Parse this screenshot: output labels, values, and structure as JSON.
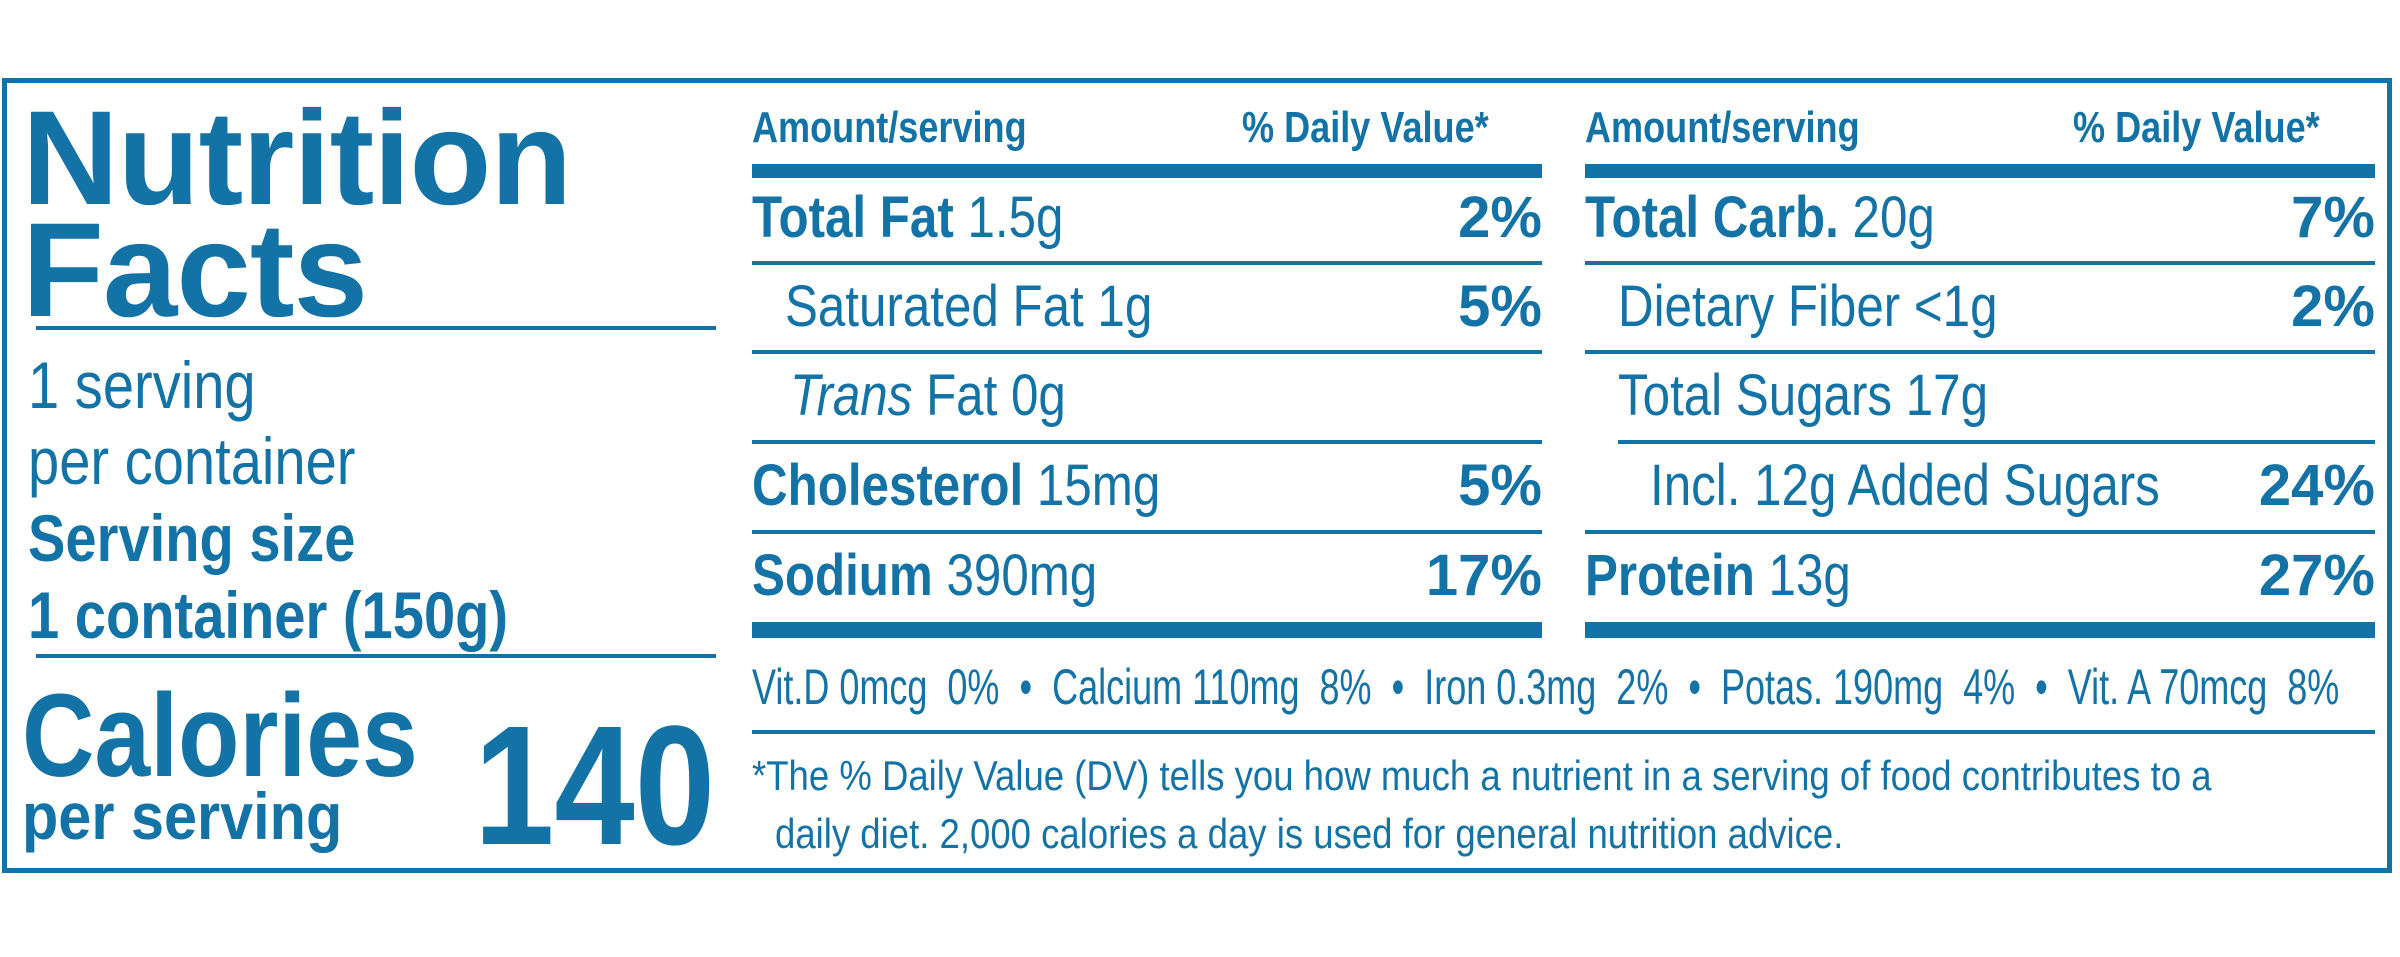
{
  "label": {
    "title_line1": "Nutrition",
    "title_line2": "Facts",
    "servings_line1": "1 serving",
    "servings_line2": "per container",
    "serving_size_label": "Serving size",
    "serving_size_value": "1 container (150g)",
    "calories_label": "Calories",
    "calories_sub": "per serving",
    "calories_value": "140"
  },
  "left_table": {
    "header_amount": "Amount/serving",
    "header_dv": "% Daily Value*",
    "rows": [
      {
        "name": "Total Fat",
        "amount": "1.5g",
        "dv": "2%"
      },
      {
        "name": "Saturated Fat 1g",
        "amount": "",
        "dv": "5%"
      },
      {
        "name_italic": "Trans",
        "name": "Fat 0g",
        "dv": ""
      },
      {
        "name": "Cholesterol",
        "amount": "15mg",
        "dv": "5%"
      },
      {
        "name": "Sodium",
        "amount": "390mg",
        "dv": "17%"
      }
    ]
  },
  "right_table": {
    "header_amount": "Amount/serving",
    "header_dv": "% Daily Value*",
    "rows": [
      {
        "name": "Total Carb.",
        "amount": "20g",
        "dv": "7%"
      },
      {
        "name": "Dietary Fiber <1g",
        "amount": "",
        "dv": "2%"
      },
      {
        "name": "Total Sugars 17g",
        "amount": "",
        "dv": ""
      },
      {
        "name": "Incl. 12g Added Sugars",
        "amount": "",
        "dv": "24%"
      },
      {
        "name": "Protein",
        "amount": "13g",
        "dv": "27%"
      }
    ]
  },
  "vitamins": {
    "vit_d": "Vit.D 0mcg",
    "vit_d_dv": "0%",
    "calcium": "Calcium 110mg",
    "calcium_dv": "8%",
    "iron": "Iron 0.3mg",
    "iron_dv": "2%",
    "potas": "Potas. 190mg",
    "potas_dv": "4%",
    "vit_a": "Vit. A 70mcg",
    "vit_a_dv": "8%",
    "bullet": "•"
  },
  "footnote": {
    "line1": "*The % Daily Value (DV) tells you how much a nutrient in a serving of food contributes to a",
    "line2": "daily diet. 2,000 calories a day is used for general nutrition advice."
  },
  "colors": {
    "ink": "#1372a6",
    "background": "#ffffff"
  }
}
